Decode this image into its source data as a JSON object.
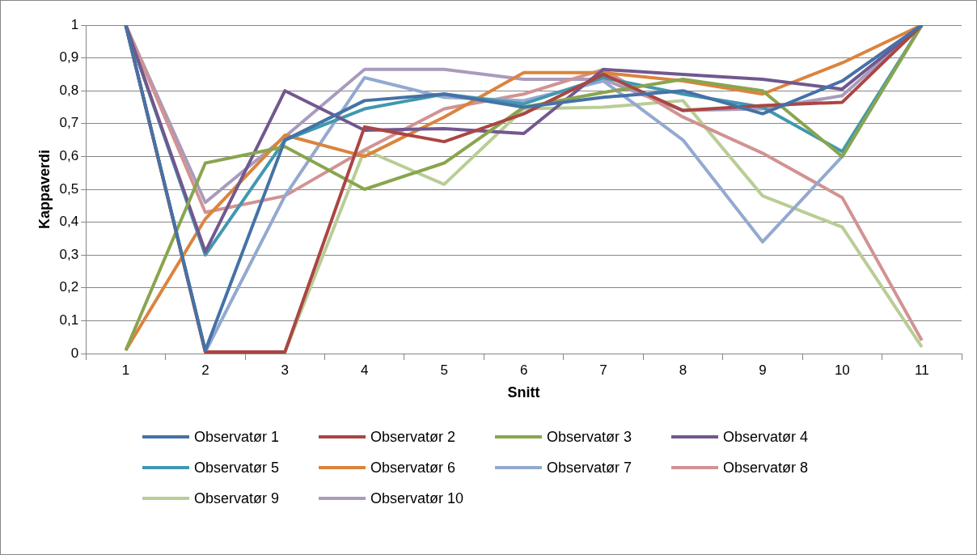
{
  "chart_data": {
    "type": "line",
    "xlabel": "Snitt",
    "ylabel": "Kappaverdi",
    "categories": [
      "1",
      "2",
      "3",
      "4",
      "5",
      "6",
      "7",
      "8",
      "9",
      "10",
      "11"
    ],
    "ylim": [
      0,
      1
    ],
    "yticks": [
      {
        "value": 0,
        "label": "0"
      },
      {
        "value": 0.1,
        "label": "0,1"
      },
      {
        "value": 0.2,
        "label": "0,2"
      },
      {
        "value": 0.3,
        "label": "0,3"
      },
      {
        "value": 0.4,
        "label": "0,4"
      },
      {
        "value": 0.5,
        "label": "0,5"
      },
      {
        "value": 0.6,
        "label": "0,6"
      },
      {
        "value": 0.7,
        "label": "0,7"
      },
      {
        "value": 0.8,
        "label": "0,8"
      },
      {
        "value": 0.9,
        "label": "0,9"
      },
      {
        "value": 1,
        "label": "1"
      }
    ],
    "grid": "y",
    "legend": "bottom",
    "marker": "none",
    "line_style": "solid",
    "series": [
      {
        "name": "Observatør 1",
        "color": "#4572a7",
        "values": [
          1,
          0.01,
          0.65,
          0.77,
          0.79,
          0.75,
          0.78,
          0.8,
          0.73,
          0.83,
          1
        ]
      },
      {
        "name": "Observatør 2",
        "color": "#aa4643",
        "values": [
          1,
          0.005,
          0.005,
          0.69,
          0.645,
          0.73,
          0.85,
          0.74,
          0.755,
          0.765,
          1
        ]
      },
      {
        "name": "Observatør 3",
        "color": "#89a54e",
        "values": [
          0.01,
          0.58,
          0.63,
          0.5,
          0.58,
          0.75,
          0.795,
          0.835,
          0.8,
          0.6,
          1
        ]
      },
      {
        "name": "Observatør 4",
        "color": "#71588f",
        "values": [
          1,
          0.31,
          0.8,
          0.68,
          0.685,
          0.67,
          0.865,
          0.85,
          0.835,
          0.805,
          1
        ]
      },
      {
        "name": "Observatør 5",
        "color": "#4198af",
        "values": [
          1,
          0.3,
          0.65,
          0.745,
          0.79,
          0.76,
          0.84,
          0.79,
          0.75,
          0.615,
          1
        ]
      },
      {
        "name": "Observatør 6",
        "color": "#db843d",
        "values": [
          0.01,
          0.41,
          0.665,
          0.6,
          0.72,
          0.855,
          0.855,
          0.83,
          0.79,
          0.885,
          1
        ]
      },
      {
        "name": "Observatør 7",
        "color": "#93a9cf",
        "values": [
          1,
          0.005,
          0.48,
          0.84,
          0.78,
          0.77,
          0.83,
          0.65,
          0.34,
          0.6,
          1
        ]
      },
      {
        "name": "Observatør 8",
        "color": "#d19392",
        "values": [
          1,
          0.43,
          0.48,
          0.62,
          0.745,
          0.79,
          0.865,
          0.72,
          0.61,
          0.475,
          0.04
        ]
      },
      {
        "name": "Observatør 9",
        "color": "#b9cd96",
        "values": [
          1,
          0.005,
          0.005,
          0.62,
          0.515,
          0.745,
          0.75,
          0.77,
          0.48,
          0.385,
          0.02
        ]
      },
      {
        "name": "Observatør 10",
        "color": "#a99bbd",
        "values": [
          1,
          0.46,
          0.66,
          0.865,
          0.865,
          0.835,
          0.835,
          0.74,
          0.745,
          0.785,
          1
        ]
      }
    ]
  }
}
